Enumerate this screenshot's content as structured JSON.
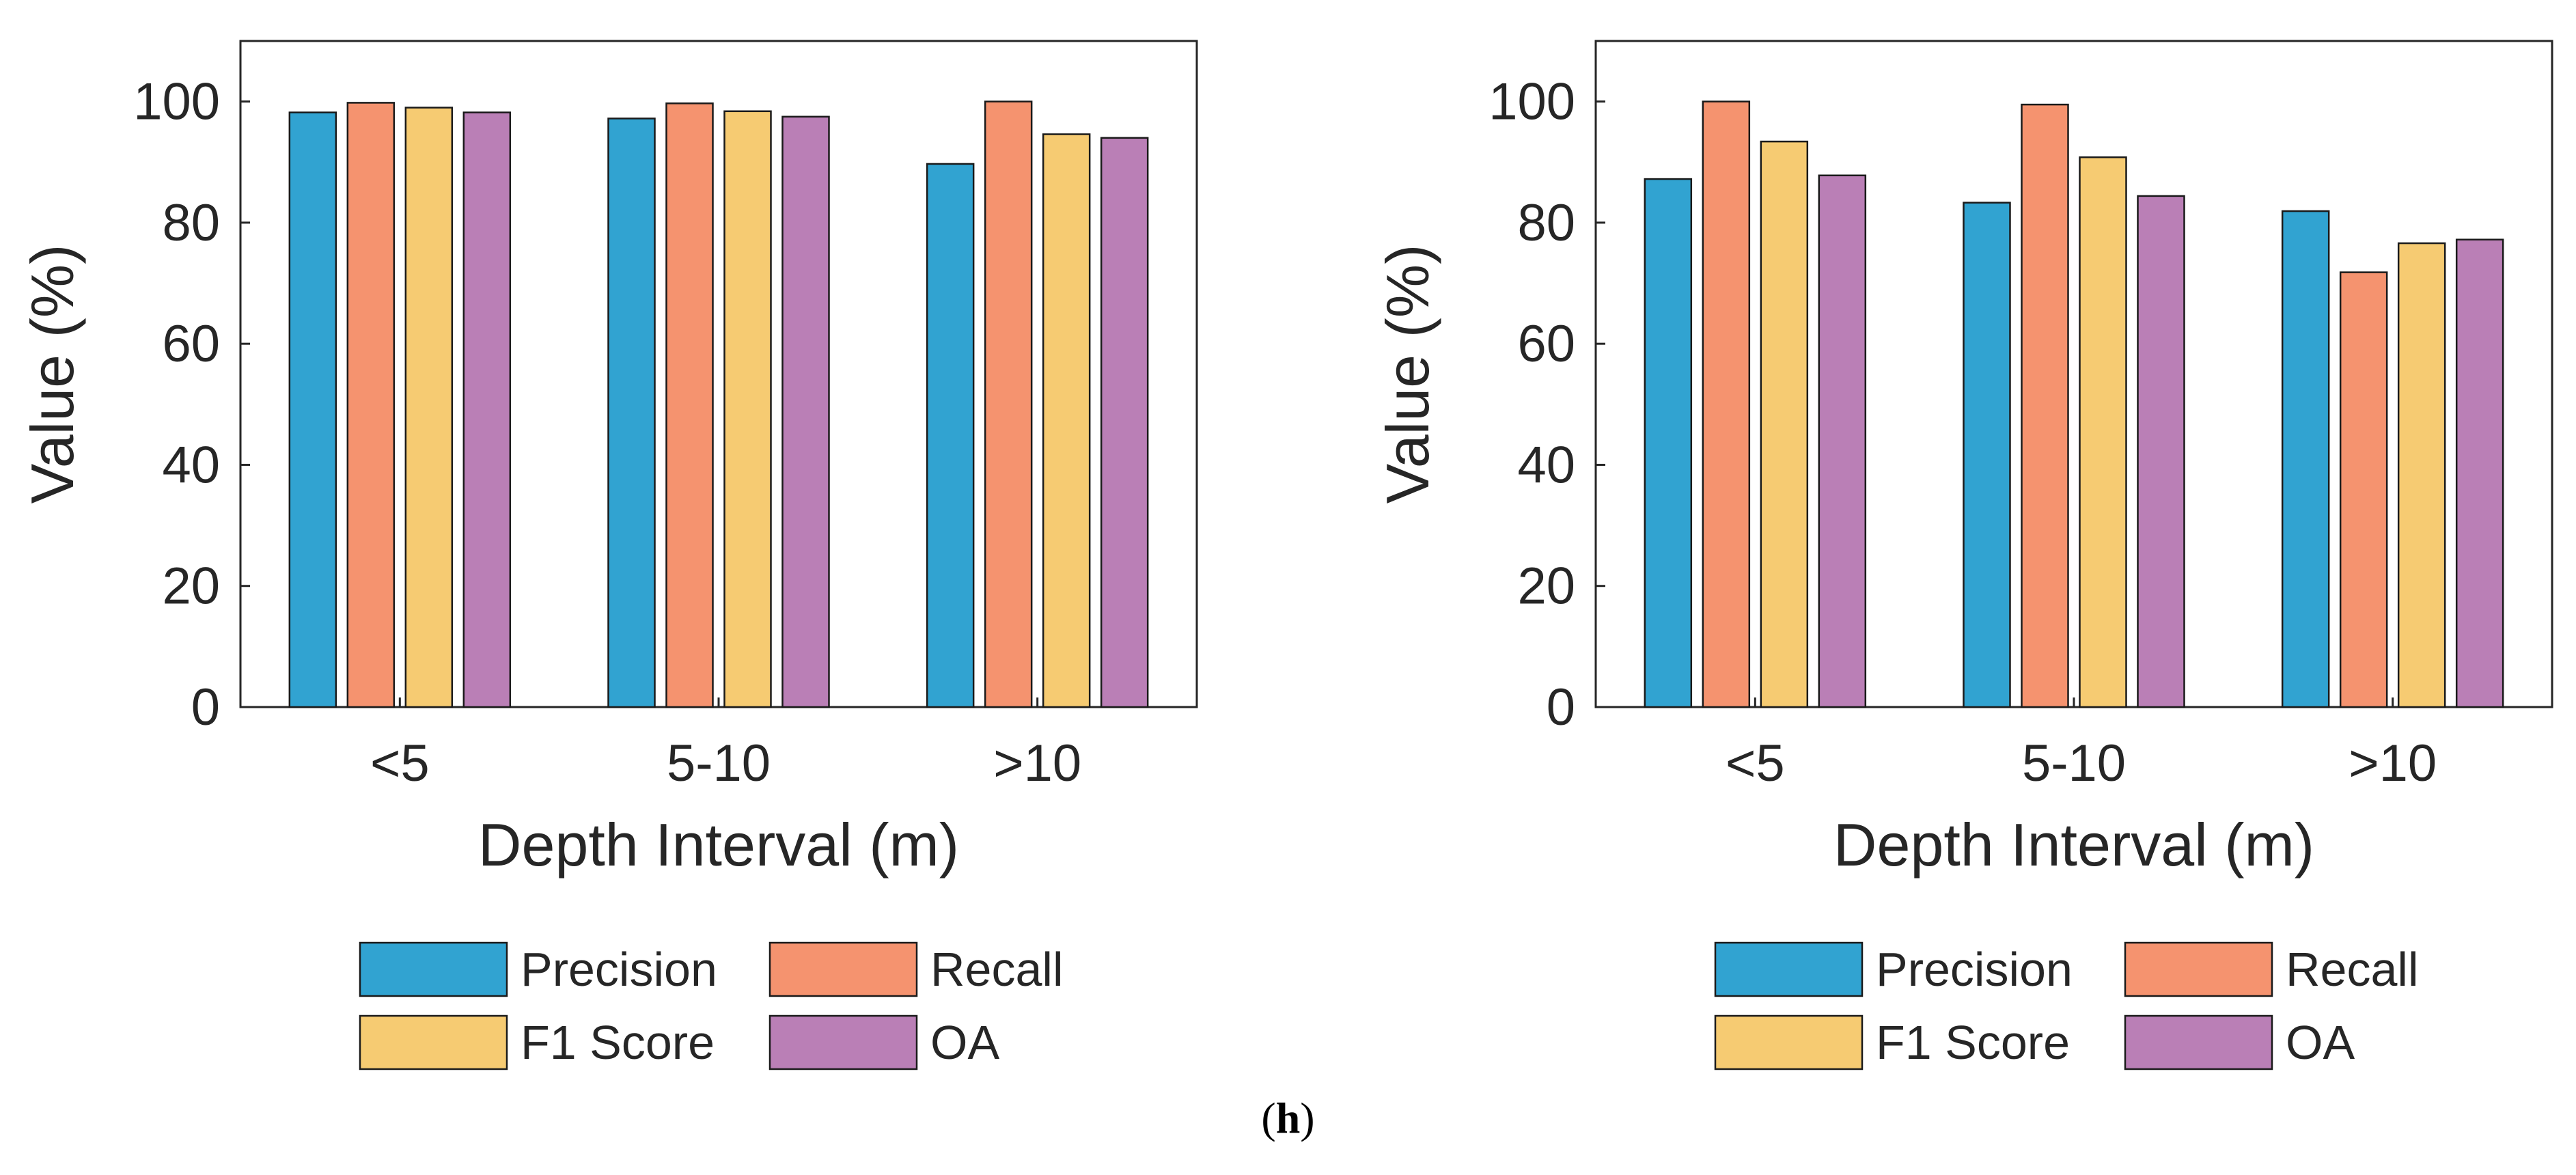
{
  "figure_label": {
    "open": "(",
    "letter": "h",
    "close": ")"
  },
  "colors": {
    "Precision": "#31a3d1",
    "Recall": "#f5936f",
    "F1 Score": "#f6cb72",
    "OA": "#ba7fb6",
    "edge": "#1a1a1a",
    "axis": "#262626"
  },
  "chart_data": [
    {
      "type": "bar",
      "title": "",
      "xlabel": "Depth Interval (m)",
      "ylabel": "Value (%)",
      "ylim": [
        0,
        110
      ],
      "yticks": [
        0,
        20,
        40,
        60,
        80,
        100
      ],
      "grid": false,
      "legend_placement": "bottom",
      "categories": [
        "<5",
        "5-10",
        ">10"
      ],
      "series": [
        {
          "name": "Precision",
          "values": [
            98.2,
            97.2,
            89.7
          ]
        },
        {
          "name": "Recall",
          "values": [
            99.8,
            99.7,
            100.0
          ]
        },
        {
          "name": "F1 Score",
          "values": [
            99.0,
            98.4,
            94.6
          ]
        },
        {
          "name": "OA",
          "values": [
            98.2,
            97.5,
            94.0
          ]
        }
      ]
    },
    {
      "type": "bar",
      "title": "",
      "xlabel": "Depth Interval (m)",
      "ylabel": "Value (%)",
      "ylim": [
        0,
        110
      ],
      "yticks": [
        0,
        20,
        40,
        60,
        80,
        100
      ],
      "grid": false,
      "legend_placement": "bottom",
      "categories": [
        "<5",
        "5-10",
        ">10"
      ],
      "series": [
        {
          "name": "Precision",
          "values": [
            87.2,
            83.3,
            81.9
          ]
        },
        {
          "name": "Recall",
          "values": [
            100.0,
            99.5,
            71.8
          ]
        },
        {
          "name": "F1 Score",
          "values": [
            93.4,
            90.8,
            76.6
          ]
        },
        {
          "name": "OA",
          "values": [
            87.8,
            84.4,
            77.2
          ]
        }
      ]
    }
  ]
}
